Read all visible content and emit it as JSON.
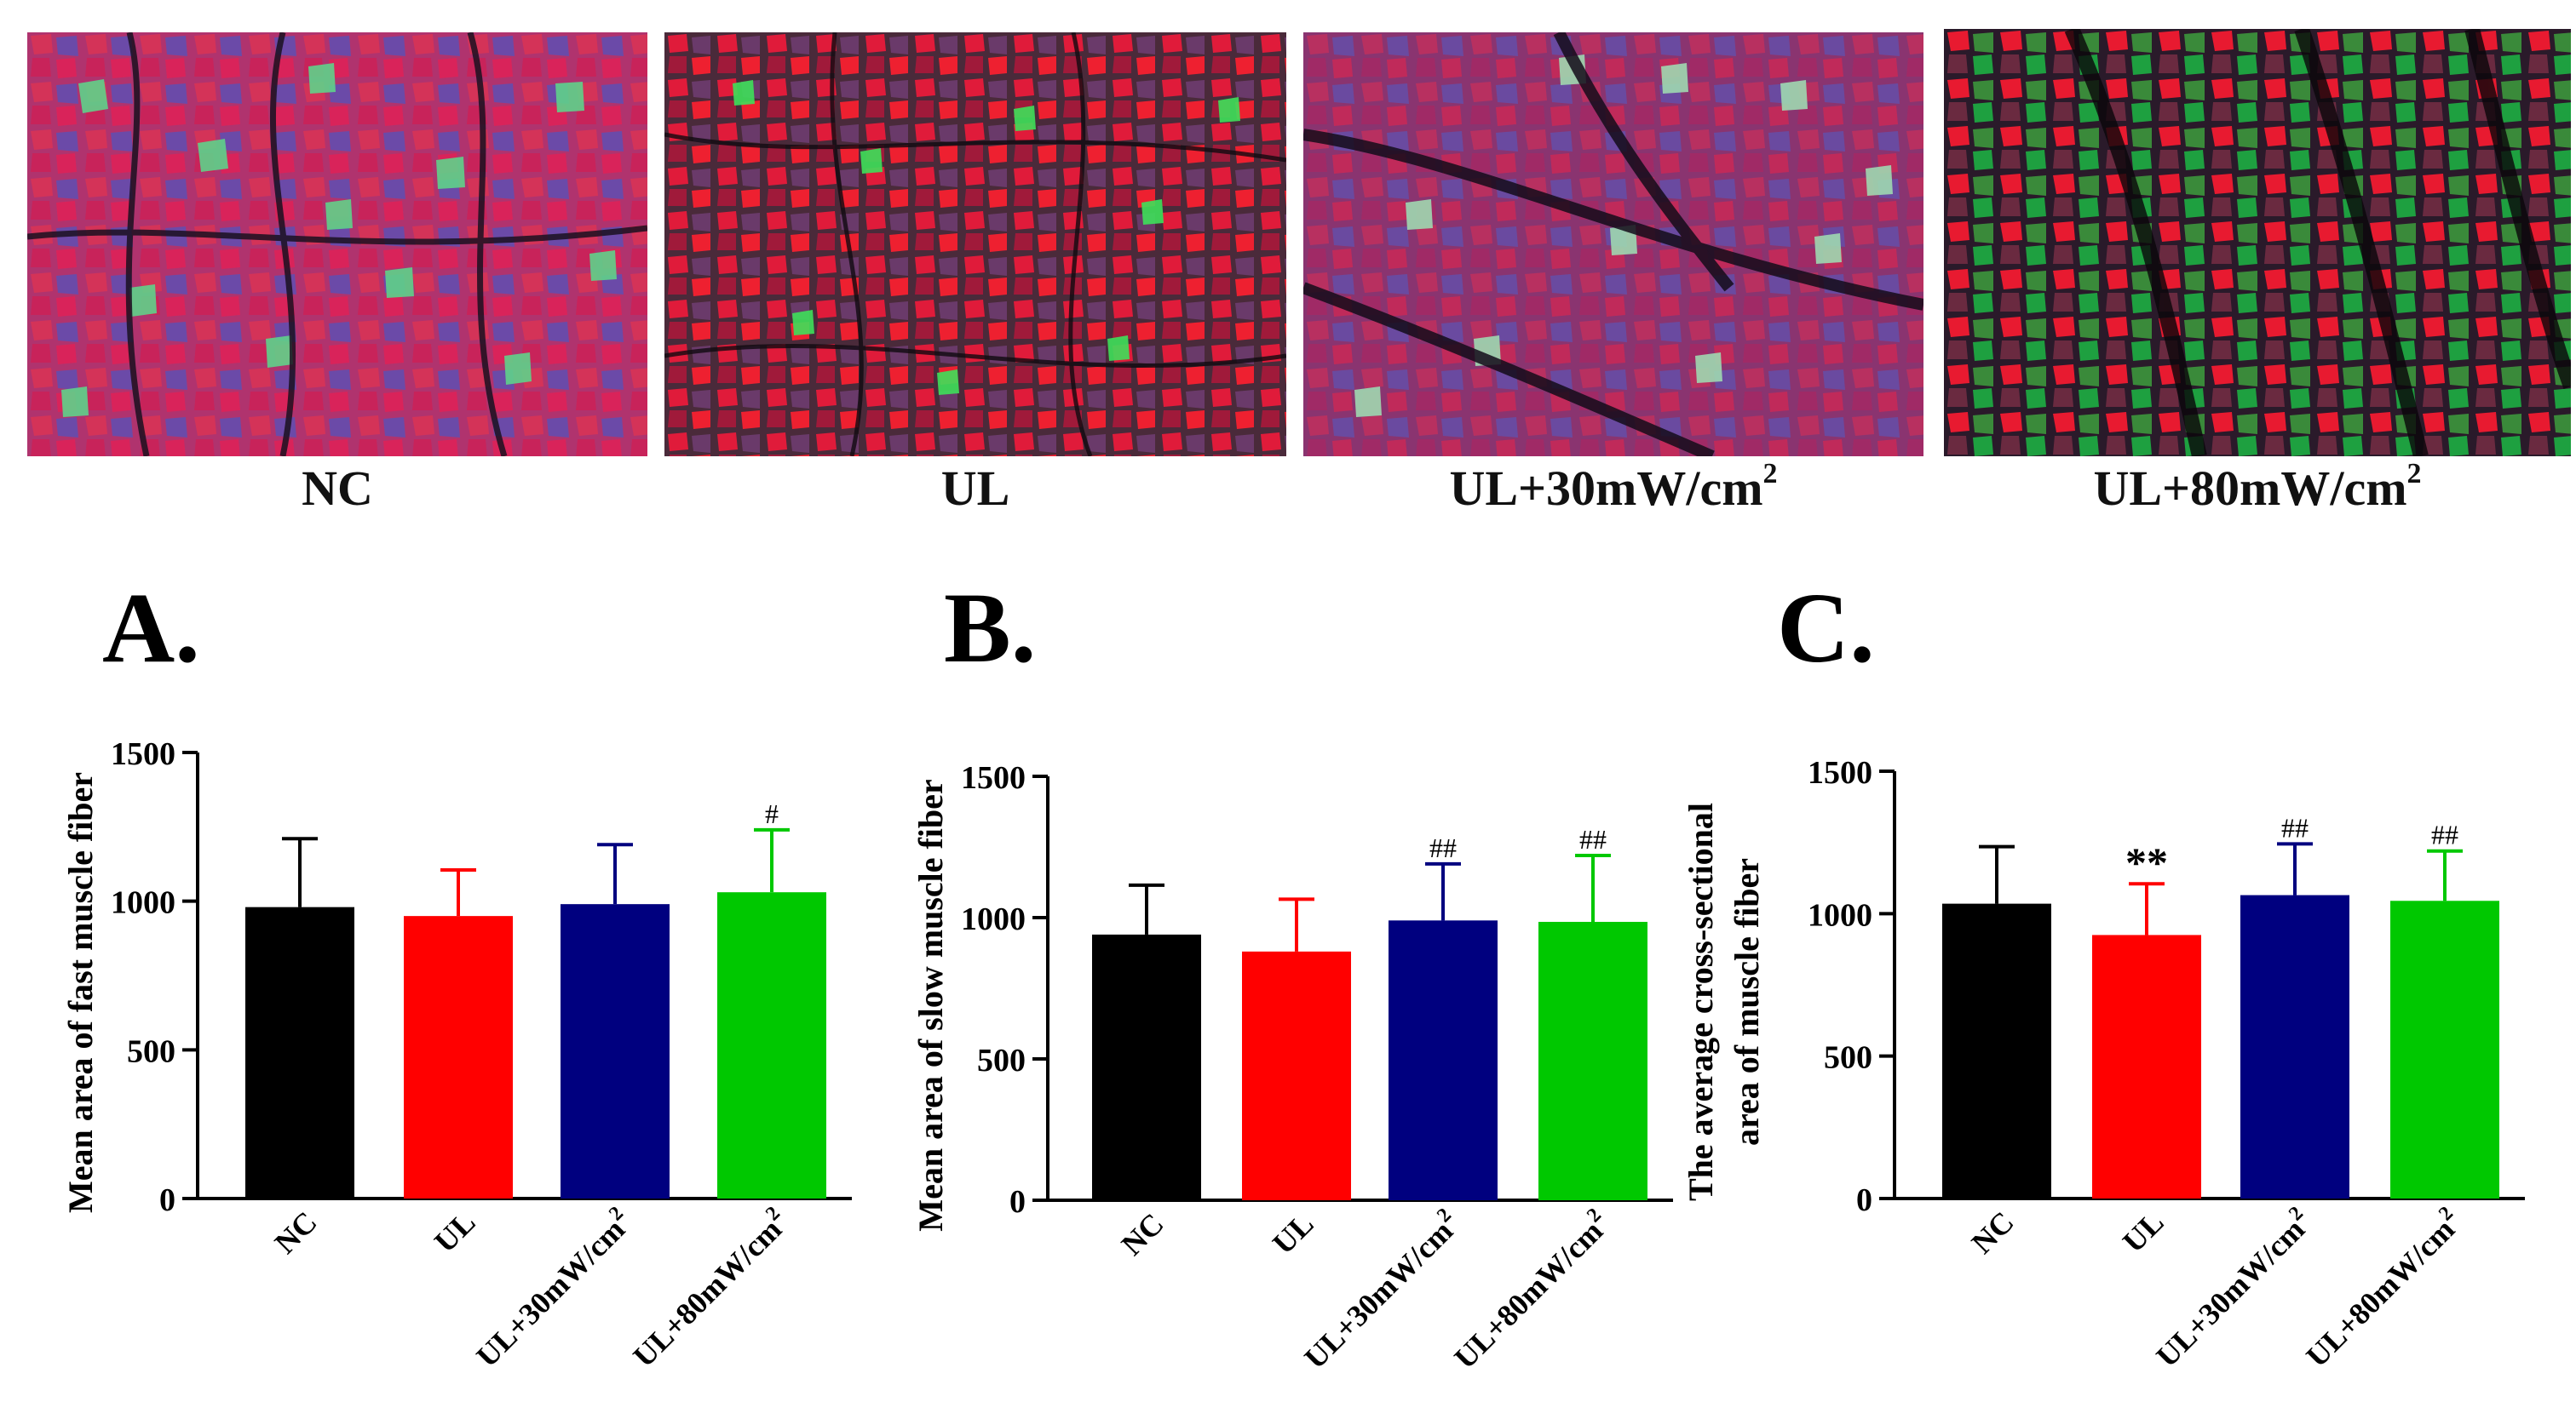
{
  "micrographs": [
    {
      "label": "NC",
      "superscript": ""
    },
    {
      "label": "UL",
      "superscript": ""
    },
    {
      "label": "UL+30mW/cm",
      "superscript": "2"
    },
    {
      "label": "UL+80mW/cm",
      "superscript": "2"
    }
  ],
  "panels": [
    "A.",
    "B.",
    "C."
  ],
  "colors": {
    "NC": "#000000",
    "UL": "#ff0000",
    "UL30": "#00007f",
    "UL80": "#00c800"
  },
  "chart_data": [
    {
      "type": "bar",
      "title": "",
      "ylabel_lines": [
        "Mean area of fast muscle fiber"
      ],
      "xlabel": "",
      "categories": [
        "NC",
        "UL",
        "UL+30mW/cm",
        "UL+80mW/cm"
      ],
      "category_superscripts": [
        "",
        "",
        "2",
        "2"
      ],
      "values": [
        980,
        950,
        990,
        1030
      ],
      "errors": [
        230,
        155,
        200,
        210
      ],
      "annotations": [
        "",
        "",
        "",
        "#"
      ],
      "ylim": [
        0,
        1500
      ],
      "yticks": [
        0,
        500,
        1000,
        1500
      ]
    },
    {
      "type": "bar",
      "title": "",
      "ylabel_lines": [
        "Mean area of slow muscle fiber"
      ],
      "xlabel": "",
      "categories": [
        "NC",
        "UL",
        "UL+30mW/cm",
        "UL+80mW/cm"
      ],
      "category_superscripts": [
        "",
        "",
        "2",
        "2"
      ],
      "values": [
        940,
        880,
        990,
        985
      ],
      "errors": [
        175,
        185,
        200,
        235
      ],
      "annotations": [
        "",
        "",
        "##",
        "##"
      ],
      "ylim": [
        0,
        1500
      ],
      "yticks": [
        0,
        500,
        1000,
        1500
      ]
    },
    {
      "type": "bar",
      "title": "",
      "ylabel_lines": [
        "The average cross-sectional",
        "area of muscle fiber"
      ],
      "xlabel": "",
      "categories": [
        "NC",
        "UL",
        "UL+30mW/cm",
        "UL+80mW/cm"
      ],
      "category_superscripts": [
        "",
        "",
        "2",
        "2"
      ],
      "values": [
        1035,
        925,
        1065,
        1045
      ],
      "errors": [
        200,
        180,
        180,
        175
      ],
      "annotations": [
        "",
        "**",
        "##",
        "##"
      ],
      "ylim": [
        0,
        1500
      ],
      "yticks": [
        0,
        500,
        1000,
        1500
      ]
    }
  ]
}
